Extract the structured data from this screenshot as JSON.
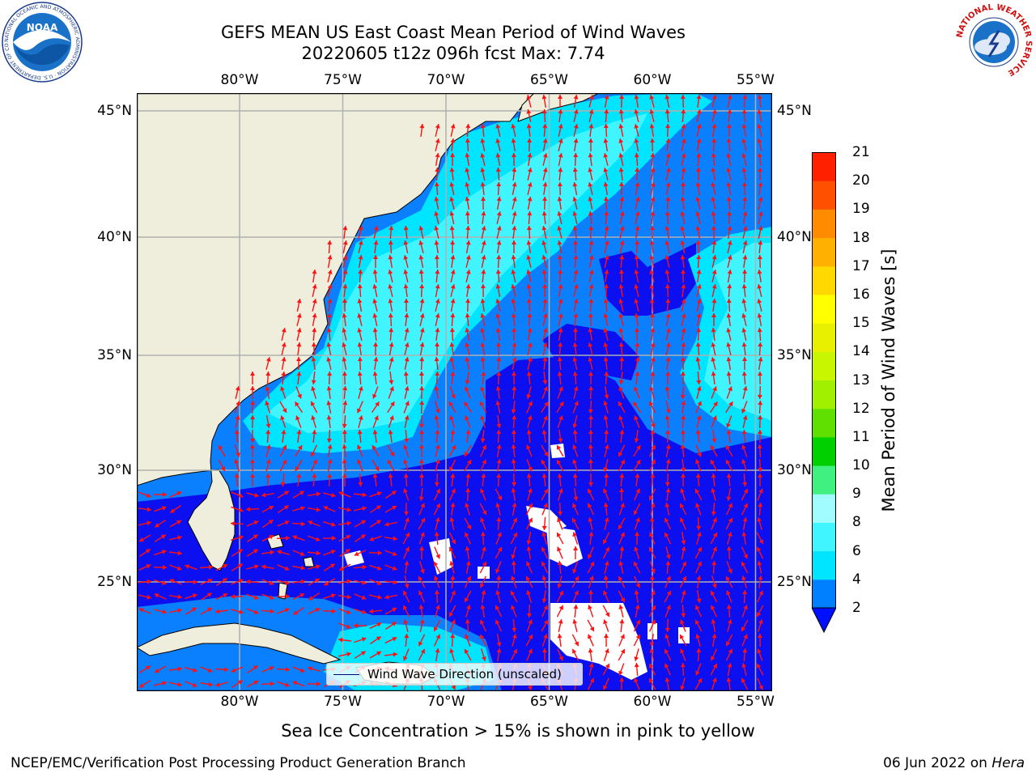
{
  "title": {
    "line1": "GEFS MEAN US East Coast Mean Period of Wind Waves",
    "line2": "20220605 t12z 096h fcst   Max: 7.74"
  },
  "axes": {
    "lon_labels": [
      "80°W",
      "75°W",
      "70°W",
      "65°W",
      "60°W",
      "55°W"
    ],
    "lat_labels": [
      "45°N",
      "40°N",
      "35°N",
      "30°N",
      "25°N"
    ]
  },
  "legend": {
    "label": "Wind Wave Direction (unscaled)"
  },
  "colorbar": {
    "label": "Mean Period of Wind Waves [s]",
    "ticks": [
      "2",
      "4",
      "6",
      "8",
      "9",
      "10",
      "11",
      "12",
      "13",
      "14",
      "15",
      "16",
      "17",
      "18",
      "19",
      "20",
      "21"
    ],
    "colors": [
      "#0080ff",
      "#00e5ff",
      "#40f5ff",
      "#a0fcff",
      "#40f080",
      "#00d000",
      "#60e000",
      "#a0f000",
      "#c8f500",
      "#e8f000",
      "#ffff00",
      "#ffd800",
      "#ffb000",
      "#ff8c00",
      "#ff5000",
      "#ff2000"
    ],
    "under_color": "#0010ff"
  },
  "note": "Sea Ice Concentration > 15% is shown in pink to yellow",
  "footer": {
    "credit": "NCEP/EMC/Verification Post Processing Product Generation Branch",
    "date": "06 Jun 2022 on",
    "host": "Hera"
  },
  "logos": {
    "noaa_text": "NOAA",
    "noaa_ring": "NATIONAL OCEANIC AND ATMOSPHERIC ADMINISTRATION · U.S. DEPARTMENT OF COMMERCE",
    "nws_ring": "NATIONAL WEATHER SERVICE"
  },
  "map_colors": {
    "land": "#efeedc",
    "sea_2_4": "#0a80ff",
    "sea_lt2": "#0c10f0",
    "sea_4_6": "#00e5ff",
    "sea_6_8": "#40f5ff",
    "arrow": "#ff1010",
    "grid": "#b0b0b0"
  }
}
